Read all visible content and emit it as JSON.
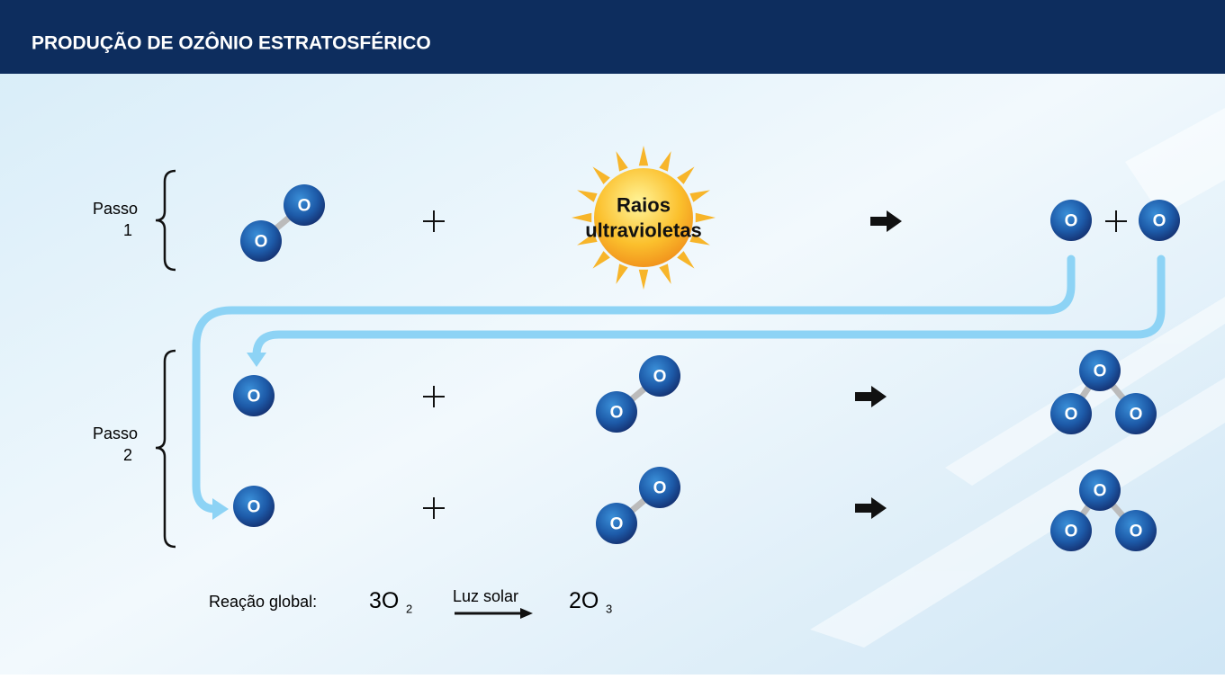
{
  "header": {
    "title": "PRODUÇÃO DE OZÔNIO ESTRATOSFÉRICO"
  },
  "steps": [
    {
      "label": [
        "Passo",
        "1"
      ]
    },
    {
      "label": [
        "Passo",
        "2"
      ]
    }
  ],
  "uv_label": [
    "Raios",
    "ultravioletas"
  ],
  "molecules": [
    {
      "atoms": [
        "O",
        "O"
      ]
    },
    {
      "atoms": [
        "O"
      ]
    },
    {
      "atoms": [
        "O"
      ]
    },
    {
      "atoms": [
        "O"
      ]
    },
    {
      "atoms": [
        "O",
        "O"
      ]
    },
    {
      "atoms": [
        "O",
        "O",
        "O"
      ]
    },
    {
      "atoms": [
        "O"
      ]
    },
    {
      "atoms": [
        "O",
        "O"
      ]
    },
    {
      "atoms": [
        "O",
        "O",
        "O"
      ]
    }
  ],
  "global_reaction": {
    "label": "Reação global:",
    "reactant": "3O",
    "reactant_sub": "2",
    "condition": "Luz solar",
    "product": "2O",
    "product_sub": "3"
  }
}
